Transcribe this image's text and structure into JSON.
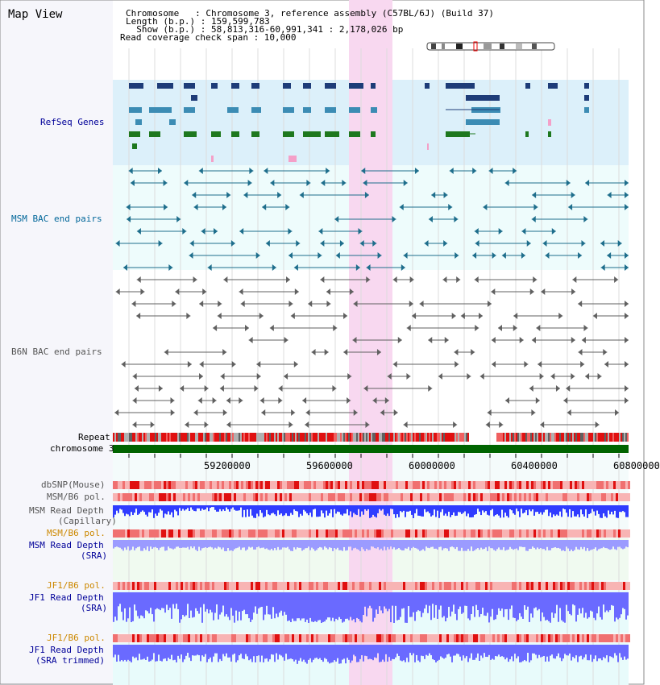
{
  "title": "Map View",
  "header": {
    "chromosome_line": "Chromosome   : Chromosome 3, reference assembly (C57BL/6J) (Build 37)",
    "length_line": "Length (b.p.) : 159,599,783",
    "show_line": "  Show (b.p.) : 58,813,316-60,991,341 : 2,178,026 bp",
    "coverage_line": "Read coverage check span : 10,000"
  },
  "tracks": {
    "refseq": "RefSeq Genes",
    "msm_bac": "MSM BAC end pairs",
    "b6n_bac": "B6N BAC end pairs",
    "repeat": "Repeat",
    "chromosome": "chromosome 3",
    "dbsnp": "dbSNP(Mouse)",
    "msm_b6_pol": "MSM/B6 pol.",
    "msm_depth_cap_1": "MSM Read Depth",
    "msm_depth_cap_2": "(Capillary)",
    "msm_b6_pol2": "MSM/B6 pol.",
    "msm_depth_sra_1": "MSM Read Depth",
    "msm_depth_sra_2": "(SRA)",
    "jf1_b6_pol": "JF1/B6 pol.",
    "jf1_depth_sra_1": "JF1 Read Depth",
    "jf1_depth_sra_2": "(SRA)",
    "jf1_b6_pol2": "JF1/B6 pol.",
    "jf1_depth_trim_1": "JF1 Read Depth",
    "jf1_depth_trim_2": "(SRA trimmed)"
  },
  "axis": {
    "ticks": [
      "59200000",
      "59600000",
      "60000000",
      "60400000",
      "60800000"
    ]
  },
  "colors": {
    "refseq_bg": "#dcf0fa",
    "bac_bg": "#eefcfc",
    "highlight": "#f8d8f0",
    "gene_dark": "#1e3c78",
    "gene_mid": "#3c8cb4",
    "gene_green": "#1e781e",
    "chromosome": "#006400",
    "depth": "#3c3cff",
    "label_blue": "#000099",
    "label_orange": "#cc8800",
    "label_teal": "#006699",
    "label_gray": "#555555"
  }
}
